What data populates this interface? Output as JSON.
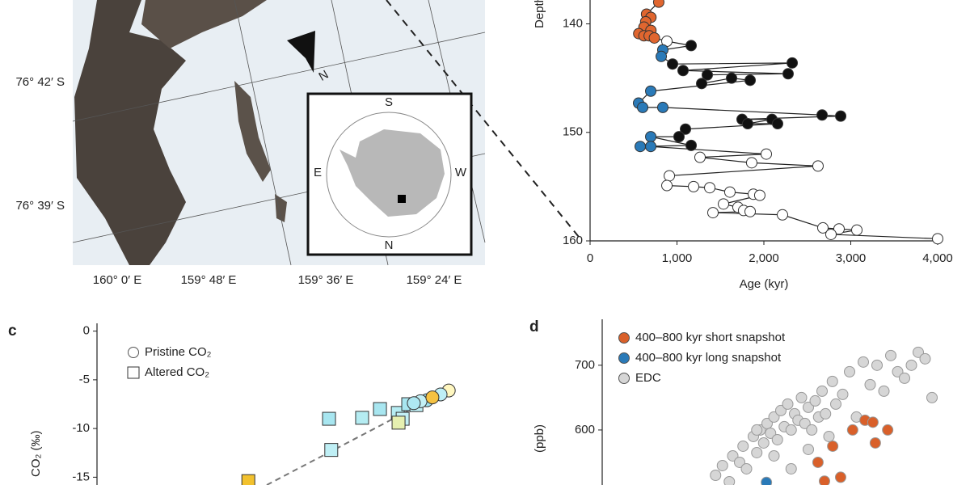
{
  "map": {
    "lat_labels": [
      "76° 42′ S",
      "76° 39′ S"
    ],
    "lon_labels": [
      "160° 0′ E",
      "159° 48′ E",
      "159° 36′ E",
      "159° 24′ E"
    ],
    "north": "N",
    "inset": {
      "top": "S",
      "left": "E",
      "right": "W",
      "bottom": "N"
    }
  },
  "chart_data": [
    {
      "type": "line",
      "x_label": "Age (kyr)",
      "y_label": "Depth (m)",
      "xlim": [
        0,
        4000
      ],
      "ylim": [
        160,
        137.8
      ],
      "xticks": [
        0,
        {
          "value": 1000,
          "label": "1,000"
        },
        {
          "value": 2000,
          "label": "2,000"
        },
        {
          "value": 3000,
          "label": "3,000"
        },
        {
          "value": 4000,
          "label": "4,000"
        }
      ],
      "yticks": [
        140,
        150,
        160
      ],
      "series": [
        {
          "color": "#222222",
          "x": [
            790,
            650,
            700,
            640,
            620,
            700,
            560,
            620,
            680,
            740,
            884,
            1163,
            837,
            819,
            949,
            2326,
            1070,
            2279,
            1349,
            1284,
            1628,
            1842,
            698,
            558,
            605,
            837,
            2670,
            2884,
            1749,
            2093,
            1814,
            2158,
            1098,
            1023,
            698,
            1163,
            577,
            698,
            2028,
            1265,
            1860,
            2623,
            912,
            884,
            1191,
            1377,
            1609,
            1879,
            1953,
            1535,
            1702,
            1767,
            1842,
            1414,
            2214,
            2679,
            2865,
            3070,
            2772,
            4000
          ],
          "y": [
            138.0,
            139.1,
            139.4,
            139.8,
            140.3,
            140.6,
            140.9,
            141.1,
            141.1,
            141.3,
            141.6,
            142.0,
            142.4,
            143.0,
            143.7,
            143.6,
            144.3,
            144.6,
            144.7,
            145.5,
            145.0,
            145.2,
            146.2,
            147.3,
            147.7,
            147.7,
            148.4,
            148.5,
            148.8,
            148.8,
            149.2,
            149.2,
            149.7,
            150.4,
            150.4,
            151.2,
            151.3,
            151.3,
            152.0,
            152.3,
            152.8,
            153.1,
            154.0,
            154.9,
            155.0,
            155.1,
            155.5,
            155.7,
            155.8,
            156.6,
            156.9,
            157.2,
            157.3,
            157.4,
            157.6,
            158.8,
            158.9,
            159.0,
            159.4,
            159.8
          ],
          "fills": [
            "#e0662f",
            "#e0662f",
            "#e0662f",
            "#e0662f",
            "#e0662f",
            "#e0662f",
            "#e0662f",
            "#e0662f",
            "#e0662f",
            "#e0662f",
            "#ffffff",
            "#111111",
            "#2a7ab8",
            "#2a7ab8",
            "#111111",
            "#111111",
            "#111111",
            "#111111",
            "#111111",
            "#111111",
            "#111111",
            "#111111",
            "#2a7ab8",
            "#2a7ab8",
            "#2a7ab8",
            "#2a7ab8",
            "#111111",
            "#111111",
            "#111111",
            "#111111",
            "#111111",
            "#111111",
            "#111111",
            "#111111",
            "#2a7ab8",
            "#111111",
            "#2a7ab8",
            "#2a7ab8",
            "#ffffff",
            "#ffffff",
            "#ffffff",
            "#ffffff",
            "#ffffff",
            "#ffffff",
            "#ffffff",
            "#ffffff",
            "#ffffff",
            "#ffffff",
            "#ffffff",
            "#ffffff",
            "#ffffff",
            "#ffffff",
            "#ffffff",
            "#ffffff",
            "#ffffff",
            "#ffffff",
            "#ffffff",
            "#ffffff",
            "#ffffff",
            "#ffffff"
          ]
        }
      ]
    },
    {
      "type": "scatter",
      "panel_label": "c",
      "y_label": "CO₂ (‰)",
      "xlim": [
        0,
        100
      ],
      "ylim": [
        -15.8,
        0.8
      ],
      "yticks": [
        0,
        -5,
        -10,
        -15
      ],
      "series": [
        {
          "name": "Pristine CO₂",
          "marker": "circle",
          "x": [
            94.6,
            92.4,
            88.7,
            87.0,
            85.2,
            90.2
          ],
          "y": [
            -6.1,
            -6.5,
            -7.1,
            -7.2,
            -7.4,
            -6.8
          ],
          "fills": [
            "#fff7c0",
            "#bfeff5",
            "#9fe3ee",
            "#c3f0f5",
            "#aee8f2",
            "#f5c242"
          ]
        },
        {
          "name": "Altered CO₂",
          "marker": "square",
          "x": [
            62.4,
            71.3,
            76.1,
            80.9,
            83.7,
            85.9,
            82.2,
            81.1,
            63.0,
            40.7
          ],
          "y": [
            -9.0,
            -8.9,
            -8.0,
            -8.4,
            -7.5,
            -7.6,
            -9.0,
            -9.4,
            -12.2,
            -15.4
          ],
          "fills": [
            "#a8e6f0",
            "#b5ecf2",
            "#a8e6f0",
            "#b5ecf2",
            "#a8e6f0",
            "#bfeff5",
            "#c3f0f5",
            "#e6f0b0",
            "#bfeff5",
            "#f2c12e"
          ]
        }
      ]
    },
    {
      "type": "scatter",
      "panel_label": "d",
      "y_label": "(ppb)",
      "xlim": [
        0,
        100
      ],
      "ylim": [
        515,
        771
      ],
      "yticks": [
        600,
        700
      ],
      "series": [
        {
          "name": "400–800 kyr short snapshot",
          "marker": "circle",
          "color": "#d9602a",
          "x": [
            76.5,
            78.8,
            83.1,
            72.9,
            67.1,
            79.5,
            62.8,
            69.4,
            64.7
          ],
          "y": [
            615,
            612,
            600,
            600,
            575,
            580,
            550,
            527,
            521
          ]
        },
        {
          "name": "400–800 kyr long snapshot",
          "marker": "circle",
          "color": "#2a7ab8",
          "x": [
            47.8
          ],
          "y": [
            519
          ]
        },
        {
          "name": "EDC",
          "marker": "circle",
          "color": "#d6d6d6",
          "x": [
            33,
            35,
            37,
            38,
            40,
            41,
            42,
            44,
            45,
            46,
            47,
            48,
            49,
            50,
            51,
            52,
            53,
            54,
            55,
            56,
            57,
            58,
            59,
            60,
            61,
            62,
            63,
            64,
            65,
            66,
            67,
            68,
            70,
            72,
            74,
            76,
            78,
            80,
            82,
            84,
            86,
            88,
            90,
            92,
            94,
            96,
            50,
            55,
            60,
            45
          ],
          "y": [
            530,
            545,
            520,
            560,
            550,
            575,
            540,
            590,
            565,
            600,
            580,
            610,
            595,
            620,
            585,
            630,
            605,
            640,
            600,
            625,
            615,
            650,
            610,
            635,
            600,
            645,
            620,
            660,
            625,
            590,
            675,
            640,
            655,
            690,
            620,
            705,
            670,
            700,
            660,
            715,
            690,
            680,
            700,
            720,
            710,
            650,
            560,
            540,
            570,
            600
          ]
        }
      ]
    }
  ]
}
